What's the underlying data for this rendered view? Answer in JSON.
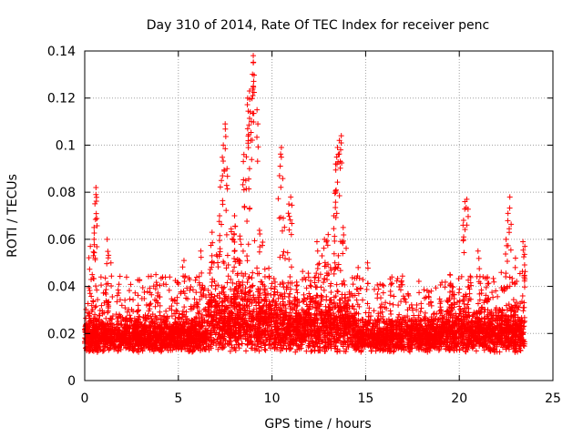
{
  "chart_data": {
    "type": "scatter",
    "title": "Day 310 of 2014, Rate Of TEC Index for receiver penc",
    "xlabel": "GPS time / hours",
    "ylabel": "ROTI / TECUs",
    "xlim": [
      0,
      25
    ],
    "ylim": [
      0,
      0.14
    ],
    "xticks": [
      0,
      5,
      10,
      15,
      20,
      25
    ],
    "yticks": [
      0,
      0.02,
      0.04,
      0.06,
      0.08,
      0.1,
      0.12,
      0.14
    ],
    "xtick_labels": [
      "0",
      "5",
      "10",
      "15",
      "20",
      "25"
    ],
    "ytick_labels": [
      "0",
      "0.02",
      "0.04",
      "0.06",
      "0.08",
      "0.1",
      "0.12",
      "0.14"
    ],
    "grid": true,
    "marker": "+",
    "marker_color": "#ff0000",
    "x_range_observed": [
      0,
      23.5
    ],
    "series": [
      {
        "name": "ROTI",
        "values_description_points": [
          [
            0.3,
            0.057
          ],
          [
            0.5,
            0.065
          ],
          [
            0.6,
            0.079
          ],
          [
            0.6,
            0.082
          ],
          [
            0.5,
            0.06
          ],
          [
            0.4,
            0.045
          ],
          [
            1.2,
            0.06
          ],
          [
            1.4,
            0.05
          ],
          [
            3.8,
            0.045
          ],
          [
            5.3,
            0.051
          ],
          [
            6.2,
            0.055
          ],
          [
            6.8,
            0.063
          ],
          [
            7.2,
            0.07
          ],
          [
            7.3,
            0.085
          ],
          [
            7.4,
            0.1
          ],
          [
            7.5,
            0.109
          ],
          [
            7.6,
            0.09
          ],
          [
            8.0,
            0.07
          ],
          [
            8.3,
            0.06
          ],
          [
            8.6,
            0.085
          ],
          [
            8.7,
            0.107
          ],
          [
            8.7,
            0.12
          ],
          [
            8.8,
            0.123
          ],
          [
            8.9,
            0.11
          ],
          [
            9.0,
            0.125
          ],
          [
            9.0,
            0.135
          ],
          [
            9.0,
            0.138
          ],
          [
            9.2,
            0.115
          ],
          [
            8.5,
            0.096
          ],
          [
            8.8,
            0.09
          ],
          [
            10.4,
            0.087
          ],
          [
            10.5,
            0.099
          ],
          [
            10.6,
            0.069
          ],
          [
            10.9,
            0.075
          ],
          [
            11.0,
            0.078
          ],
          [
            12.4,
            0.059
          ],
          [
            12.8,
            0.06
          ],
          [
            13.0,
            0.062
          ],
          [
            13.3,
            0.07
          ],
          [
            13.4,
            0.08
          ],
          [
            13.4,
            0.092
          ],
          [
            13.5,
            0.099
          ],
          [
            13.6,
            0.102
          ],
          [
            13.7,
            0.104
          ],
          [
            13.8,
            0.065
          ],
          [
            14.6,
            0.048
          ],
          [
            15.1,
            0.05
          ],
          [
            16.4,
            0.044
          ],
          [
            17.3,
            0.036
          ],
          [
            18.5,
            0.038
          ],
          [
            19.5,
            0.045
          ],
          [
            20.2,
            0.066
          ],
          [
            20.3,
            0.076
          ],
          [
            20.4,
            0.077
          ],
          [
            21.0,
            0.055
          ],
          [
            21.5,
            0.044
          ],
          [
            22.5,
            0.06
          ],
          [
            22.6,
            0.071
          ],
          [
            22.7,
            0.078
          ],
          [
            23.0,
            0.052
          ],
          [
            23.4,
            0.059
          ],
          [
            23.5,
            0.057
          ]
        ]
      }
    ]
  }
}
